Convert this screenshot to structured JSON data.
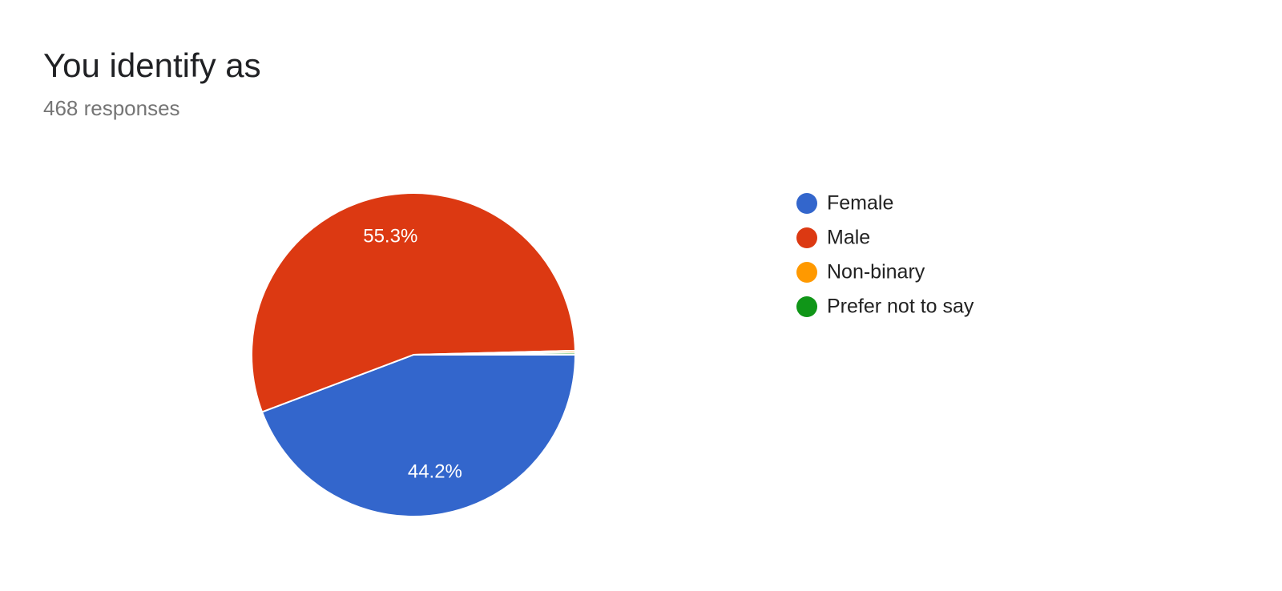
{
  "chart_data": {
    "type": "pie",
    "title": "You identify as",
    "subtitle": "468 responses",
    "categories": [
      "Female",
      "Male",
      "Non-binary",
      "Prefer not to say"
    ],
    "values": [
      44.2,
      55.3,
      0.2,
      0.2
    ],
    "value_labels": [
      "44.2%",
      "55.3%",
      null,
      null
    ],
    "colors": [
      "#3366cc",
      "#dc3912",
      "#ff9900",
      "#109618"
    ],
    "legend": "right"
  }
}
